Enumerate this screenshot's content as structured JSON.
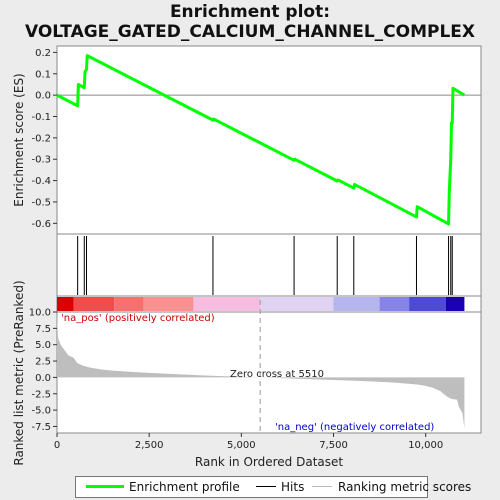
{
  "title_line1": "Enrichment plot:",
  "title_line2": "VOLTAGE_GATED_CALCIUM_CHANNEL_COMPLEX",
  "colors": {
    "es_line": "#00ff00",
    "hits": "#000000",
    "metric_fill": "#bebebe",
    "pos_label": "#cc0000",
    "neg_label": "#0000cc"
  },
  "legend": {
    "enrichment": "Enrichment profile",
    "hits": "Hits",
    "ranking": "Ranking metric scores"
  },
  "chart_data": [
    {
      "type": "line",
      "name": "enrichment-profile",
      "ylabel": "Enrichment score (ES)",
      "xlim": [
        0,
        11500
      ],
      "ylim": [
        -0.65,
        0.23
      ],
      "yticks": [
        -0.6,
        -0.5,
        -0.4,
        -0.3,
        -0.2,
        -0.1,
        0.0,
        0.1,
        0.2
      ],
      "ytick_labels": [
        "-0.6",
        "-0.5",
        "-0.4",
        "-0.3",
        "-0.2",
        "-0.1",
        "0.0",
        "0.1",
        "0.2"
      ],
      "x": [
        0,
        560,
        580,
        740,
        760,
        800,
        820,
        4230,
        4250,
        6430,
        6450,
        7600,
        7620,
        8050,
        8070,
        9750,
        9770,
        10620,
        10640,
        10680,
        10700,
        10720,
        10740,
        11050
      ],
      "y": [
        0.0,
        -0.05,
        0.05,
        0.035,
        0.11,
        0.12,
        0.185,
        -0.117,
        -0.112,
        -0.305,
        -0.3,
        -0.402,
        -0.397,
        -0.435,
        -0.418,
        -0.57,
        -0.522,
        -0.603,
        -0.45,
        -0.3,
        -0.13,
        -0.13,
        0.032,
        0.0
      ],
      "grid": false
    },
    {
      "type": "hits",
      "name": "hits",
      "positions": [
        560,
        740,
        800,
        4230,
        6430,
        7600,
        8050,
        9750,
        10620,
        10680,
        10720
      ]
    },
    {
      "type": "heatbar",
      "name": "rank-colorbar",
      "segments": [
        {
          "start": 0,
          "end": 450,
          "color": "#dd0000"
        },
        {
          "start": 450,
          "end": 1550,
          "color": "#f04c4c"
        },
        {
          "start": 1550,
          "end": 2350,
          "color": "#f77070"
        },
        {
          "start": 2350,
          "end": 3700,
          "color": "#fa9090"
        },
        {
          "start": 3700,
          "end": 5510,
          "color": "#f7bde0"
        },
        {
          "start": 5510,
          "end": 7500,
          "color": "#e0d2f3"
        },
        {
          "start": 7500,
          "end": 8750,
          "color": "#b7b5ee"
        },
        {
          "start": 8750,
          "end": 9550,
          "color": "#8684e7"
        },
        {
          "start": 9550,
          "end": 10550,
          "color": "#4e4ad6"
        },
        {
          "start": 10550,
          "end": 11050,
          "color": "#1a00b0"
        }
      ]
    },
    {
      "type": "area",
      "name": "ranked-list-metric",
      "xlabel": "Rank in Ordered Dataset",
      "ylabel": "Ranked list metric (PreRanked)",
      "xlim": [
        0,
        11500
      ],
      "ylim": [
        -8.5,
        10.0
      ],
      "xticks": [
        0,
        2500,
        5000,
        7500,
        10000
      ],
      "xtick_labels": [
        "0",
        "2,500",
        "5,000",
        "7,500",
        "10,000"
      ],
      "yticks": [
        -7.5,
        -5.0,
        -2.5,
        0.0,
        2.5,
        5.0,
        7.5,
        10.0
      ],
      "ytick_labels": [
        "-7.5",
        "-5.0",
        "-2.5",
        "0.0",
        "2.5",
        "5.0",
        "7.5",
        "10.0"
      ],
      "x": [
        0,
        30,
        100,
        200,
        300,
        450,
        550,
        700,
        900,
        1200,
        1600,
        2000,
        2500,
        3000,
        3500,
        4000,
        4500,
        5000,
        5510,
        6000,
        6500,
        7000,
        7500,
        8000,
        8500,
        9000,
        9500,
        9800,
        10000,
        10200,
        10400,
        10500,
        10600,
        10700,
        10850,
        10900,
        11000,
        11050
      ],
      "y": [
        9.5,
        6.0,
        5.0,
        4.2,
        3.4,
        3.0,
        2.2,
        1.8,
        1.5,
        1.2,
        1.0,
        0.85,
        0.7,
        0.55,
        0.42,
        0.3,
        0.2,
        0.1,
        0.0,
        -0.1,
        -0.2,
        -0.3,
        -0.4,
        -0.5,
        -0.6,
        -0.75,
        -0.95,
        -1.1,
        -1.3,
        -1.6,
        -2.1,
        -2.6,
        -3.0,
        -3.3,
        -3.4,
        -4.5,
        -5.5,
        -7.8
      ],
      "zero_cross": 5510,
      "zero_cross_label": "Zero cross at 5510",
      "pos_label": "'na_pos' (positively correlated)",
      "neg_label": "'na_neg' (negatively correlated)"
    }
  ]
}
